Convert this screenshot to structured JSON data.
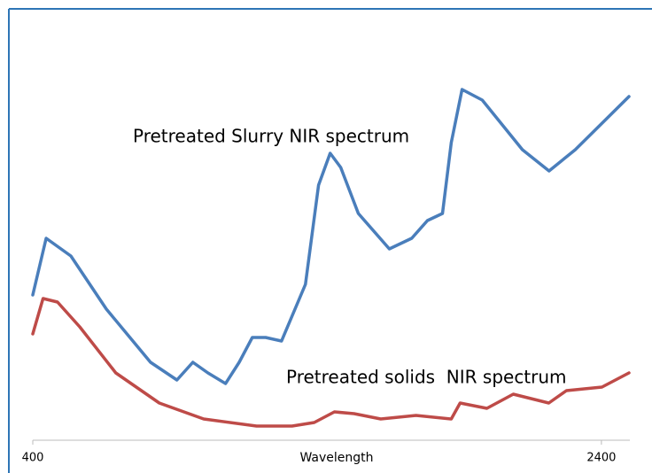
{
  "chart_data": {
    "type": "line",
    "x_label": "Wavelength",
    "annotations": [
      "Pretreated Slurry NIR spectrum",
      "Pretreated solids  NIR spectrum"
    ],
    "xlim": [
      400,
      2500
    ],
    "xticks": [
      400,
      2400
    ],
    "ylim": [
      0,
      100
    ],
    "series": [
      {
        "color": "#4a7ebb",
        "x": [
          400,
          447,
          534,
          659,
          814,
          907,
          963,
          1016,
          1078,
          1126,
          1172,
          1219,
          1275,
          1359,
          1405,
          1446,
          1483,
          1545,
          1654,
          1733,
          1788,
          1841,
          1872,
          1910,
          1981,
          2122,
          2216,
          2308,
          2497
        ],
        "values": [
          41,
          57,
          52,
          37,
          22,
          17,
          22,
          19,
          16,
          22,
          29,
          29,
          28,
          44,
          72,
          81,
          77,
          64,
          54,
          57,
          62,
          64,
          84,
          99,
          96,
          82,
          76,
          82,
          97
        ]
      },
      {
        "color": "#be4b48",
        "x": [
          400,
          436,
          487,
          565,
          692,
          845,
          1001,
          1187,
          1312,
          1390,
          1461,
          1530,
          1624,
          1748,
          1872,
          1903,
          1997,
          2090,
          2215,
          2277,
          2402,
          2497
        ],
        "values": [
          30,
          40,
          39,
          32,
          19,
          10.5,
          6,
          4,
          4,
          5,
          8,
          7.5,
          6,
          7,
          6,
          10.5,
          9,
          13,
          10.5,
          14,
          15,
          19
        ]
      }
    ]
  }
}
